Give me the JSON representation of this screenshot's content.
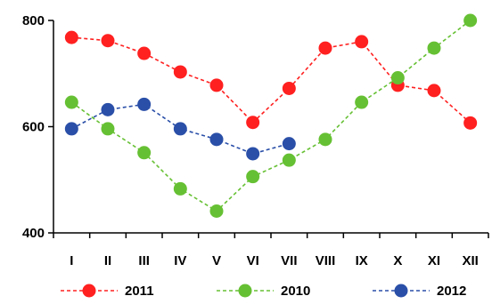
{
  "chart_data": {
    "type": "line",
    "title": "",
    "xlabel": "",
    "ylabel": "",
    "ylim": [
      400,
      800
    ],
    "yticks": [
      400,
      600,
      800
    ],
    "grid": false,
    "legend_position": "bottom",
    "categories": [
      "I",
      "II",
      "III",
      "IV",
      "V",
      "VI",
      "VII",
      "VIII",
      "IX",
      "X",
      "XI",
      "XII"
    ],
    "series": [
      {
        "name": "2011",
        "color": "#ff2020",
        "values": [
          768,
          762,
          738,
          703,
          678,
          608,
          672,
          748,
          760,
          678,
          668,
          607
        ]
      },
      {
        "name": "2010",
        "color": "#66c033",
        "values": [
          646,
          596,
          551,
          483,
          441,
          506,
          537,
          576,
          646,
          692,
          748,
          800
        ]
      },
      {
        "name": "2012",
        "color": "#2a4fa8",
        "values": [
          596,
          632,
          642,
          596,
          576,
          549,
          568,
          null,
          null,
          null,
          null,
          null
        ]
      }
    ]
  }
}
